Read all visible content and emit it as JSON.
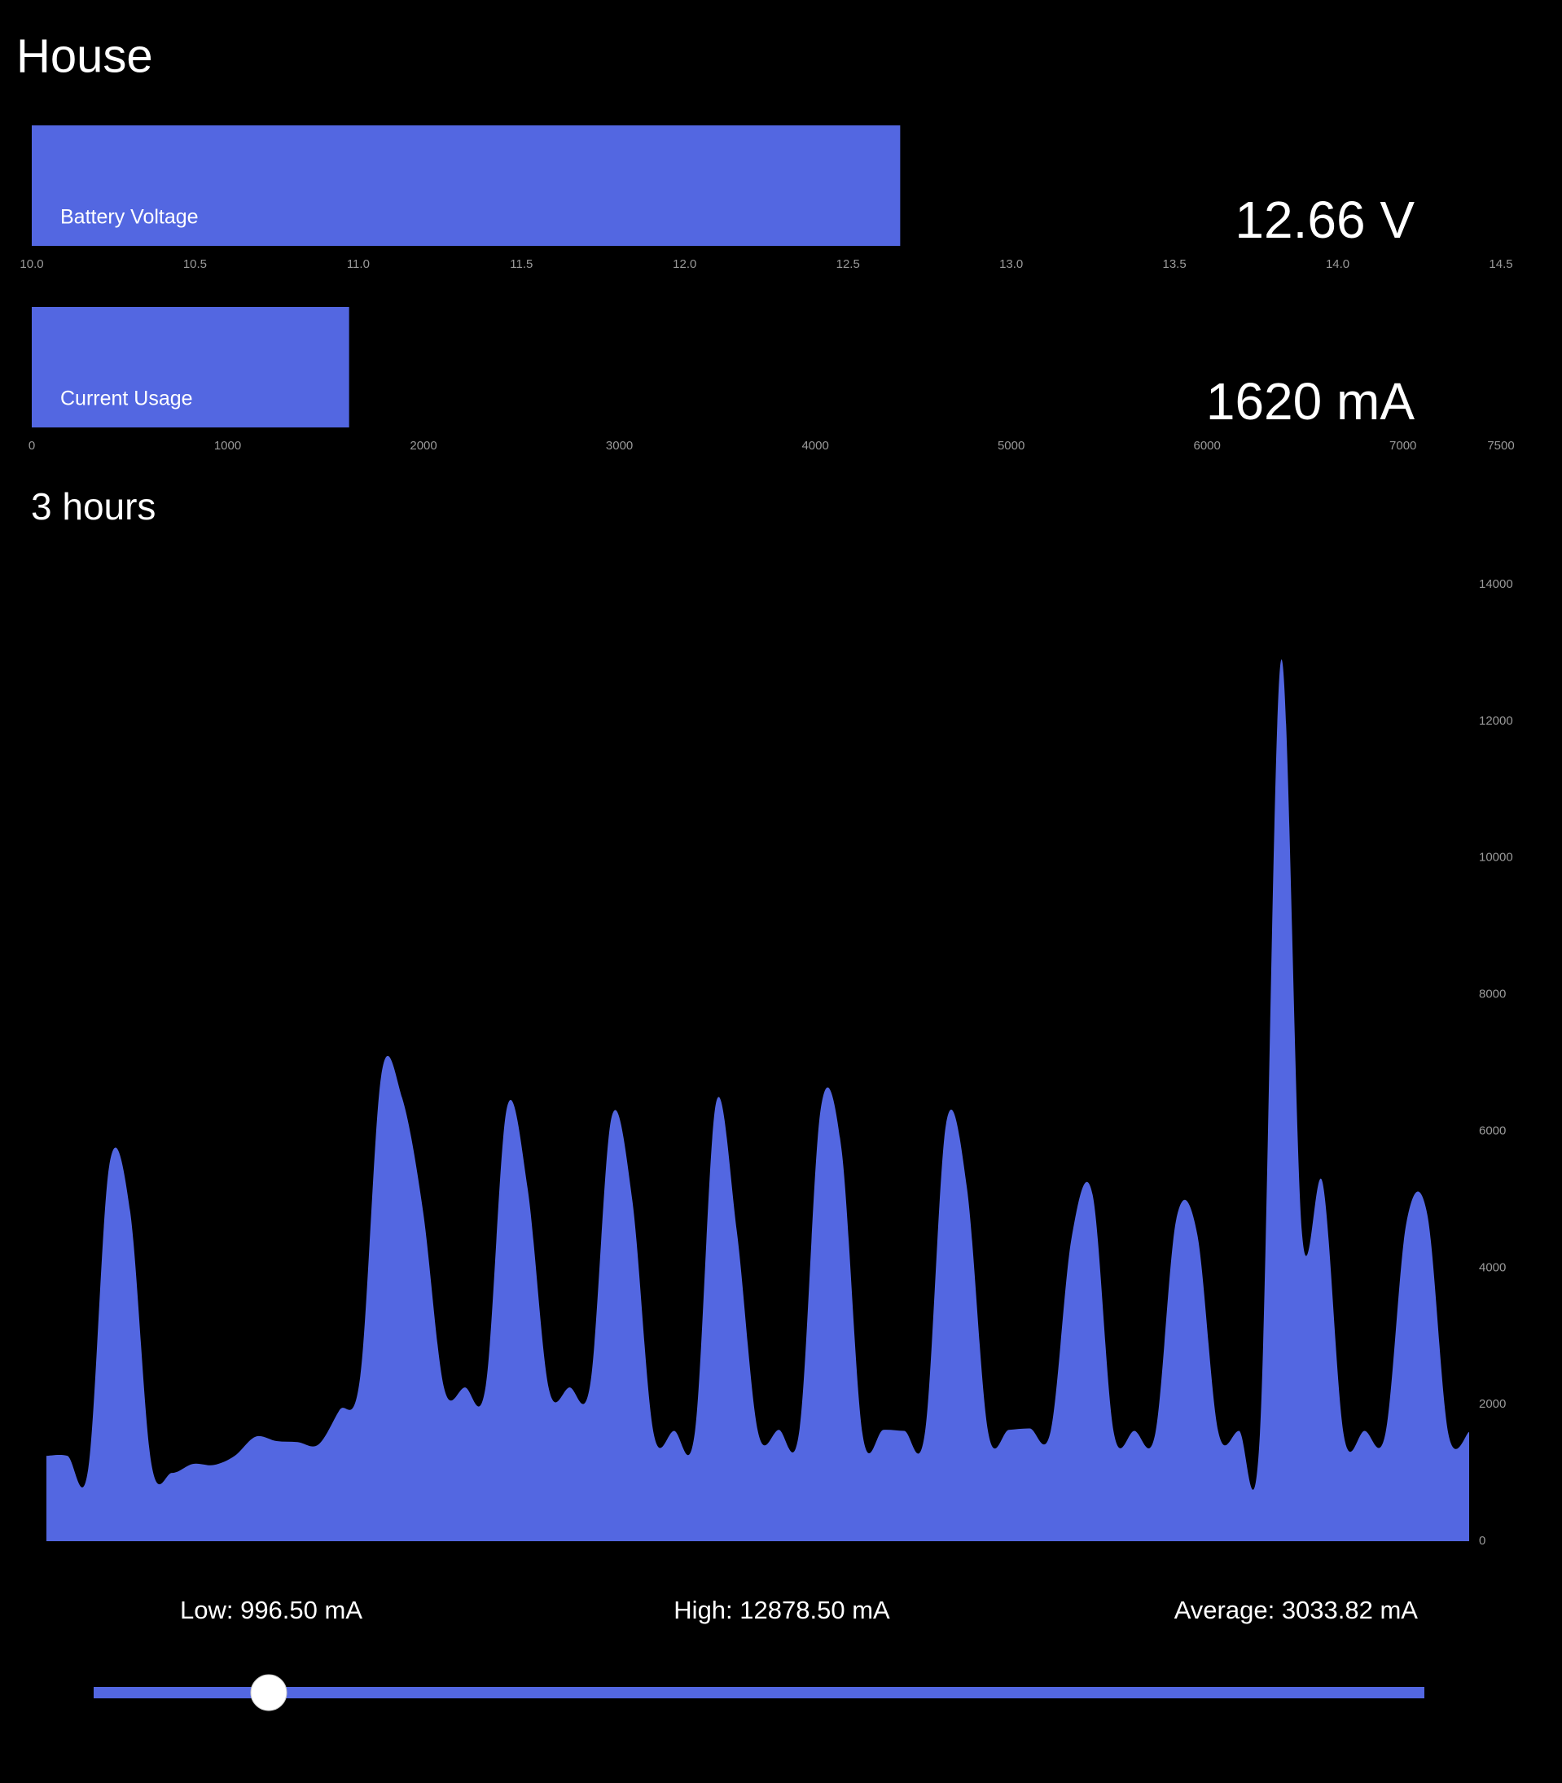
{
  "header": {
    "title": "House"
  },
  "gauges": [
    {
      "type": "bar",
      "label": "Battery Voltage",
      "value": 12.66,
      "value_label": "12.66 V",
      "color": "#5367e1",
      "xlim": [
        10,
        14.5
      ],
      "xticks": [
        {
          "value": 10,
          "label": "10.0"
        },
        10.5,
        {
          "value": 11,
          "label": "11.0"
        },
        11.5,
        {
          "value": 12,
          "label": "12.0"
        },
        12.5,
        {
          "value": 13,
          "label": "13.0"
        },
        13.5,
        {
          "value": 14,
          "label": "14.0"
        },
        14.5
      ]
    },
    {
      "type": "bar",
      "label": "Current Usage",
      "value": 1620,
      "value_label": "1620 mA",
      "color": "#5367e1",
      "xlim": [
        0,
        7500
      ],
      "xticks": [
        0,
        1000,
        2000,
        3000,
        4000,
        5000,
        6000,
        7000,
        7500
      ]
    }
  ],
  "history": {
    "type": "area",
    "title": "3 hours",
    "color": "#5367e1",
    "values": [
      1250,
      1250,
      1065,
      5490,
      4830,
      1165,
      1000,
      1130,
      1115,
      1250,
      1530,
      1465,
      1450,
      1415,
      1915,
      2415,
      6810,
      6490,
      4830,
      2250,
      2250,
      2280,
      6330,
      5160,
      2250,
      2250,
      2315,
      6190,
      4995,
      1615,
      1615,
      1615,
      6410,
      4530,
      1615,
      1630,
      1650,
      6310,
      5740,
      1580,
      1630,
      1615,
      1615,
      6110,
      5160,
      1615,
      1630,
      1650,
      1615,
      4445,
      5075,
      1615,
      1615,
      1580,
      4710,
      4500,
      1615,
      1615,
      1580,
      12880,
      4545,
      5240,
      1565,
      1615,
      1580,
      4660,
      4780,
      1580,
      1600
    ],
    "ylim": [
      0,
      14000
    ],
    "yticks": [
      0,
      2000,
      4000,
      6000,
      8000,
      10000,
      12000,
      14000
    ]
  },
  "stats": [
    "Low: 996.50 mA",
    "High: 12878.50 mA",
    "Average: 3033.82 mA"
  ]
}
